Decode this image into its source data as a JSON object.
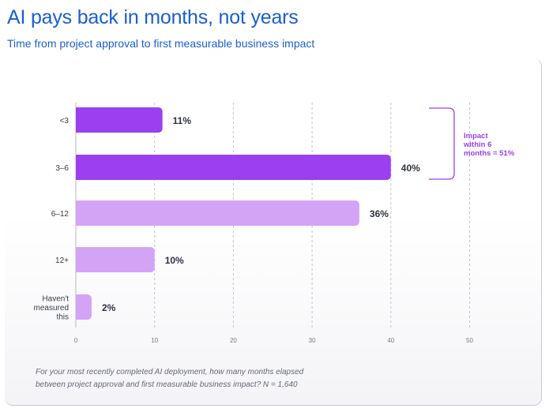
{
  "header": {
    "title": "AI pays back in months, not years",
    "subtitle": "Time from project approval to first measurable business impact"
  },
  "chart_data": {
    "type": "bar",
    "orientation": "horizontal",
    "categories": [
      "<3",
      "3–6",
      "6–12",
      "12+",
      "Haven't measured this"
    ],
    "category_lines": [
      [
        "<3"
      ],
      [
        "3–6"
      ],
      [
        "6–12"
      ],
      [
        "12+"
      ],
      [
        "Haven't",
        "measured",
        "this"
      ]
    ],
    "values": [
      11,
      40,
      36,
      10,
      2
    ],
    "value_labels": [
      "11%",
      "40%",
      "36%",
      "10%",
      "2%"
    ],
    "bar_colors": [
      "#9b3ff0",
      "#9b3ff0",
      "#d3a4f6",
      "#d3a4f6",
      "#d3a4f6"
    ],
    "xlim": [
      0,
      50
    ],
    "xticks": [
      0,
      10,
      20,
      30,
      40,
      50
    ],
    "grid": "vertical dashed",
    "annotation": {
      "lines": [
        "Impact",
        "within 6",
        "months = 51%"
      ],
      "brackets_categories": [
        "<3",
        "3–6"
      ],
      "color": "#9b3ff0"
    }
  },
  "footnote": {
    "line1": "For your most recently completed AI deployment, how many months elapsed",
    "line2": "between project approval and first measurable business impact? N = 1,640"
  }
}
